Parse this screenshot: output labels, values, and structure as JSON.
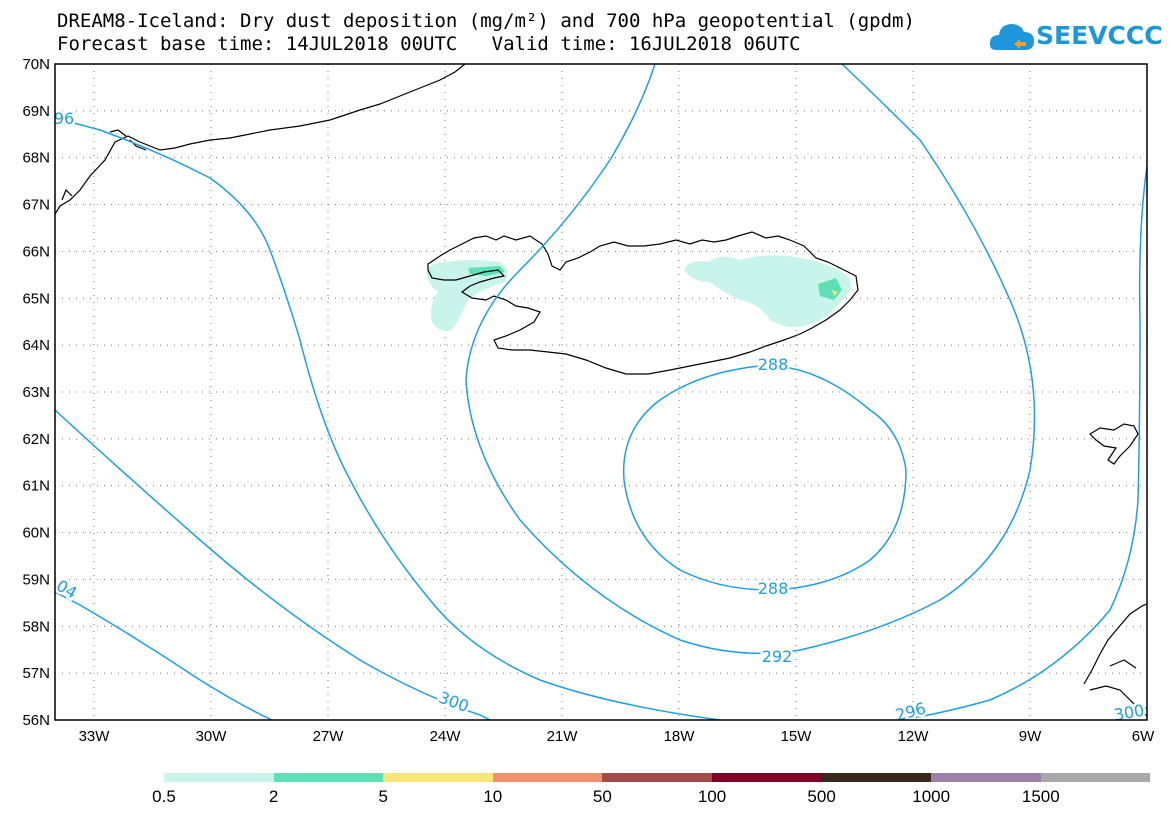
{
  "header": {
    "title_line1": "DREAM8-Iceland: Dry dust deposition (mg/m²) and 700 hPa geopotential (gpdm)",
    "title_line2": "Forecast base time: 14JUL2018 00UTC   Valid time: 16JUL2018 06UTC"
  },
  "logo": {
    "text": "SEEVCCC",
    "icon": "cloud-icon",
    "color": "#1e96dc"
  },
  "map": {
    "lat_labels": [
      "70N",
      "69N",
      "68N",
      "67N",
      "66N",
      "65N",
      "64N",
      "63N",
      "62N",
      "61N",
      "60N",
      "59N",
      "58N",
      "57N",
      "56N"
    ],
    "lon_labels": [
      "33W",
      "30W",
      "27W",
      "24W",
      "21W",
      "18W",
      "15W",
      "12W",
      "9W",
      "6W"
    ],
    "contour_labels": [
      "96",
      "04",
      "300",
      "288",
      "288",
      "292",
      "296",
      "300"
    ],
    "contour_color": "#1e9ee6",
    "grid": "dotted"
  },
  "legend": {
    "labels": [
      "0.5",
      "2",
      "5",
      "10",
      "50",
      "100",
      "500",
      "1000",
      "1500"
    ],
    "colors": [
      "#c8f4ec",
      "#5ce0b4",
      "#f8e678",
      "#f0906c",
      "#a04c48",
      "#800028",
      "#38281c",
      "#9c80a8",
      "#a8a8a8"
    ]
  }
}
